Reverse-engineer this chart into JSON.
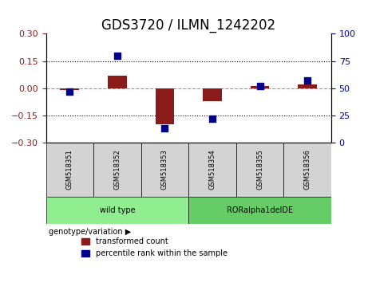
{
  "title": "GDS3720 / ILMN_1242202",
  "samples": [
    "GSM518351",
    "GSM518352",
    "GSM518353",
    "GSM518354",
    "GSM518355",
    "GSM518356"
  ],
  "red_bars": [
    -0.01,
    0.07,
    -0.2,
    -0.07,
    0.01,
    0.02
  ],
  "blue_dots": [
    47,
    80,
    13,
    22,
    52,
    57
  ],
  "ylim_left": [
    -0.3,
    0.3
  ],
  "ylim_right": [
    0,
    100
  ],
  "yticks_left": [
    -0.3,
    -0.15,
    0,
    0.15,
    0.3
  ],
  "yticks_right": [
    0,
    25,
    50,
    75,
    100
  ],
  "hlines": [
    0.15,
    -0.15
  ],
  "groups": [
    {
      "label": "wild type",
      "samples": [
        0,
        1,
        2
      ],
      "color": "#90EE90"
    },
    {
      "label": "RORalpha1delDE",
      "samples": [
        3,
        4,
        5
      ],
      "color": "#66CC66"
    }
  ],
  "bar_color": "#8B1A1A",
  "dot_color": "#00008B",
  "dashed_line_color": "#FF6666",
  "dotted_line_color": "#000000",
  "title_fontsize": 12,
  "tick_fontsize": 8,
  "label_fontsize": 8,
  "bar_width": 0.4,
  "dot_size": 30,
  "legend_entries": [
    "transformed count",
    "percentile rank within the sample"
  ],
  "genotype_label": "genotype/variation"
}
